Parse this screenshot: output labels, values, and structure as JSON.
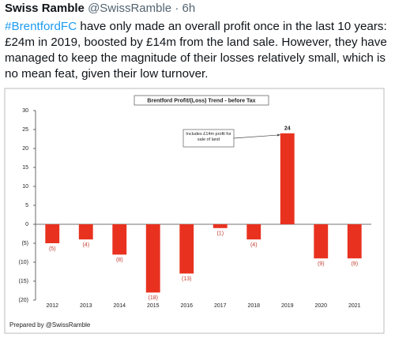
{
  "tweet": {
    "author": "Swiss Ramble",
    "handle": "@SwissRamble",
    "separator": "·",
    "time": "6h",
    "hashtag": "#BrentfordFC",
    "text": " have only made an overall profit once in the last 10 years: £24m in 2019, boosted by £14m from the land sale. However, they have managed to keep the magnitude of their losses relatively small, which is no mean feat, given their low turnover."
  },
  "chart_data": {
    "type": "bar",
    "title": "Brentford Profit/(Loss) Trend - before Tax",
    "categories": [
      "2012",
      "2013",
      "2014",
      "2015",
      "2016",
      "2017",
      "2018",
      "2019",
      "2020",
      "2021"
    ],
    "values": [
      -5,
      -4,
      -8,
      -18,
      -13,
      -1,
      -4,
      24,
      -9,
      -9
    ],
    "value_labels": [
      "(5)",
      "(4)",
      "(8)",
      "(18)",
      "(13)",
      "(1)",
      "(4)",
      "24",
      "(9)",
      "(9)"
    ],
    "color": "#e8321f",
    "ylim": [
      -20,
      30
    ],
    "yticks": [
      {
        "value": -20,
        "label": "(20)"
      },
      {
        "value": -15,
        "label": "(15)"
      },
      {
        "value": -10,
        "label": "(10)"
      },
      {
        "value": -5,
        "label": "(5)"
      },
      0,
      5,
      10,
      15,
      20,
      25,
      30
    ],
    "annotation": "Includes £14m profit for sale of land",
    "footer": "Prepared by @SwissRamble"
  }
}
